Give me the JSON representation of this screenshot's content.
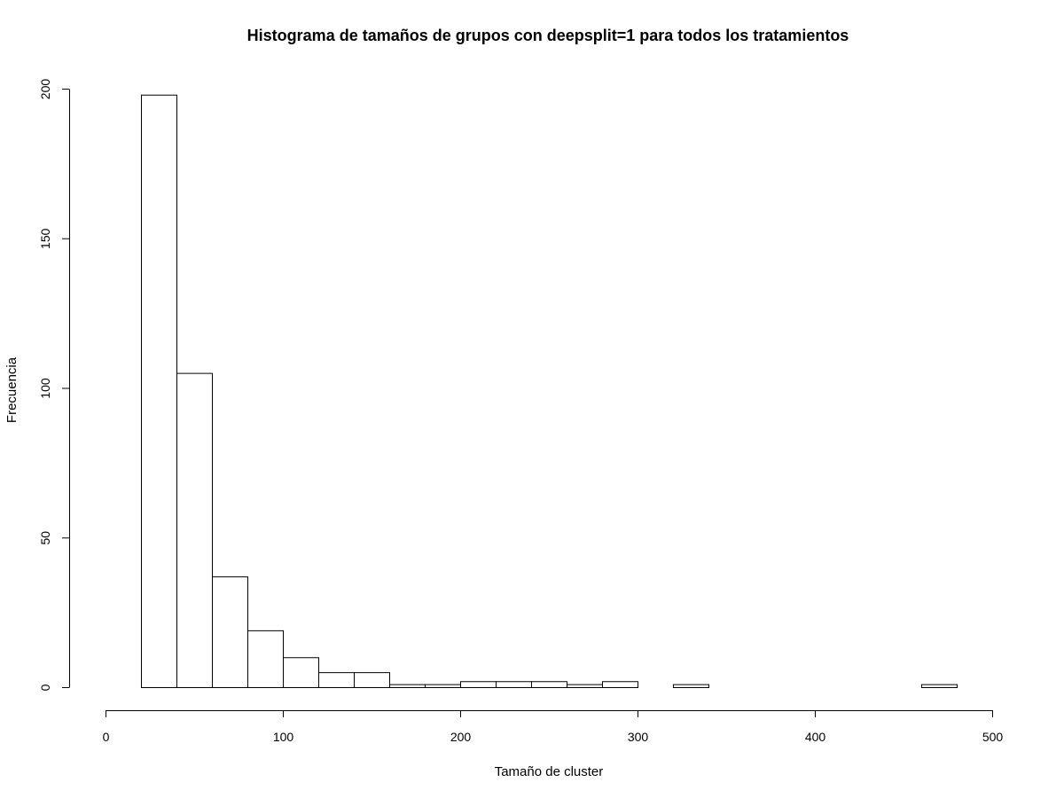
{
  "chart_data": {
    "type": "bar",
    "title": "Histograma de tamaños de grupos con deepsplit=1 para todos los tratamientos",
    "xlabel": "Tamaño de cluster",
    "ylabel": "Frecuencia",
    "xlim": [
      0,
      500
    ],
    "ylim": [
      0,
      200
    ],
    "x_ticks": [
      0,
      100,
      200,
      300,
      400,
      500
    ],
    "y_ticks": [
      0,
      50,
      100,
      150,
      200
    ],
    "bin_width": 20,
    "bins": [
      {
        "x0": 20,
        "x1": 40,
        "value": 198
      },
      {
        "x0": 40,
        "x1": 60,
        "value": 105
      },
      {
        "x0": 60,
        "x1": 80,
        "value": 37
      },
      {
        "x0": 80,
        "x1": 100,
        "value": 19
      },
      {
        "x0": 100,
        "x1": 120,
        "value": 10
      },
      {
        "x0": 120,
        "x1": 140,
        "value": 5
      },
      {
        "x0": 140,
        "x1": 160,
        "value": 5
      },
      {
        "x0": 160,
        "x1": 180,
        "value": 1
      },
      {
        "x0": 180,
        "x1": 200,
        "value": 1
      },
      {
        "x0": 200,
        "x1": 220,
        "value": 2
      },
      {
        "x0": 220,
        "x1": 240,
        "value": 2
      },
      {
        "x0": 240,
        "x1": 260,
        "value": 2
      },
      {
        "x0": 260,
        "x1": 280,
        "value": 1
      },
      {
        "x0": 280,
        "x1": 300,
        "value": 2
      },
      {
        "x0": 300,
        "x1": 320,
        "value": 0
      },
      {
        "x0": 320,
        "x1": 340,
        "value": 1
      },
      {
        "x0": 340,
        "x1": 360,
        "value": 0
      },
      {
        "x0": 360,
        "x1": 380,
        "value": 0
      },
      {
        "x0": 380,
        "x1": 400,
        "value": 0
      },
      {
        "x0": 400,
        "x1": 420,
        "value": 0
      },
      {
        "x0": 420,
        "x1": 440,
        "value": 0
      },
      {
        "x0": 440,
        "x1": 460,
        "value": 0
      },
      {
        "x0": 460,
        "x1": 480,
        "value": 1
      }
    ],
    "grid": false
  }
}
